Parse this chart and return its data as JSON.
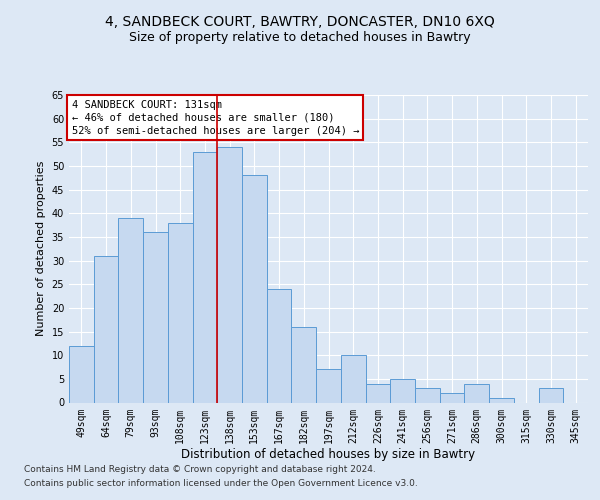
{
  "title1": "4, SANDBECK COURT, BAWTRY, DONCASTER, DN10 6XQ",
  "title2": "Size of property relative to detached houses in Bawtry",
  "xlabel": "Distribution of detached houses by size in Bawtry",
  "ylabel": "Number of detached properties",
  "categories": [
    "49sqm",
    "64sqm",
    "79sqm",
    "93sqm",
    "108sqm",
    "123sqm",
    "138sqm",
    "153sqm",
    "167sqm",
    "182sqm",
    "197sqm",
    "212sqm",
    "226sqm",
    "241sqm",
    "256sqm",
    "271sqm",
    "286sqm",
    "300sqm",
    "315sqm",
    "330sqm",
    "345sqm"
  ],
  "values": [
    12,
    31,
    39,
    36,
    38,
    53,
    54,
    48,
    24,
    16,
    7,
    10,
    4,
    5,
    3,
    2,
    4,
    1,
    0,
    3,
    0
  ],
  "bar_color": "#c6d9f0",
  "bar_edge_color": "#5b9bd5",
  "annotation_text": "4 SANDBECK COURT: 131sqm\n← 46% of detached houses are smaller (180)\n52% of semi-detached houses are larger (204) →",
  "annotation_box_color": "#ffffff",
  "annotation_box_edge_color": "#cc0000",
  "vline_color": "#cc0000",
  "ylim": [
    0,
    65
  ],
  "yticks": [
    0,
    5,
    10,
    15,
    20,
    25,
    30,
    35,
    40,
    45,
    50,
    55,
    60,
    65
  ],
  "footer_line1": "Contains HM Land Registry data © Crown copyright and database right 2024.",
  "footer_line2": "Contains public sector information licensed under the Open Government Licence v3.0.",
  "bg_color": "#dde8f5",
  "plot_bg_color": "#dde8f5",
  "title1_fontsize": 10,
  "title2_fontsize": 9,
  "xlabel_fontsize": 8.5,
  "ylabel_fontsize": 8,
  "tick_fontsize": 7,
  "annot_fontsize": 7.5,
  "footer_fontsize": 6.5,
  "vline_x_index": 5.5
}
